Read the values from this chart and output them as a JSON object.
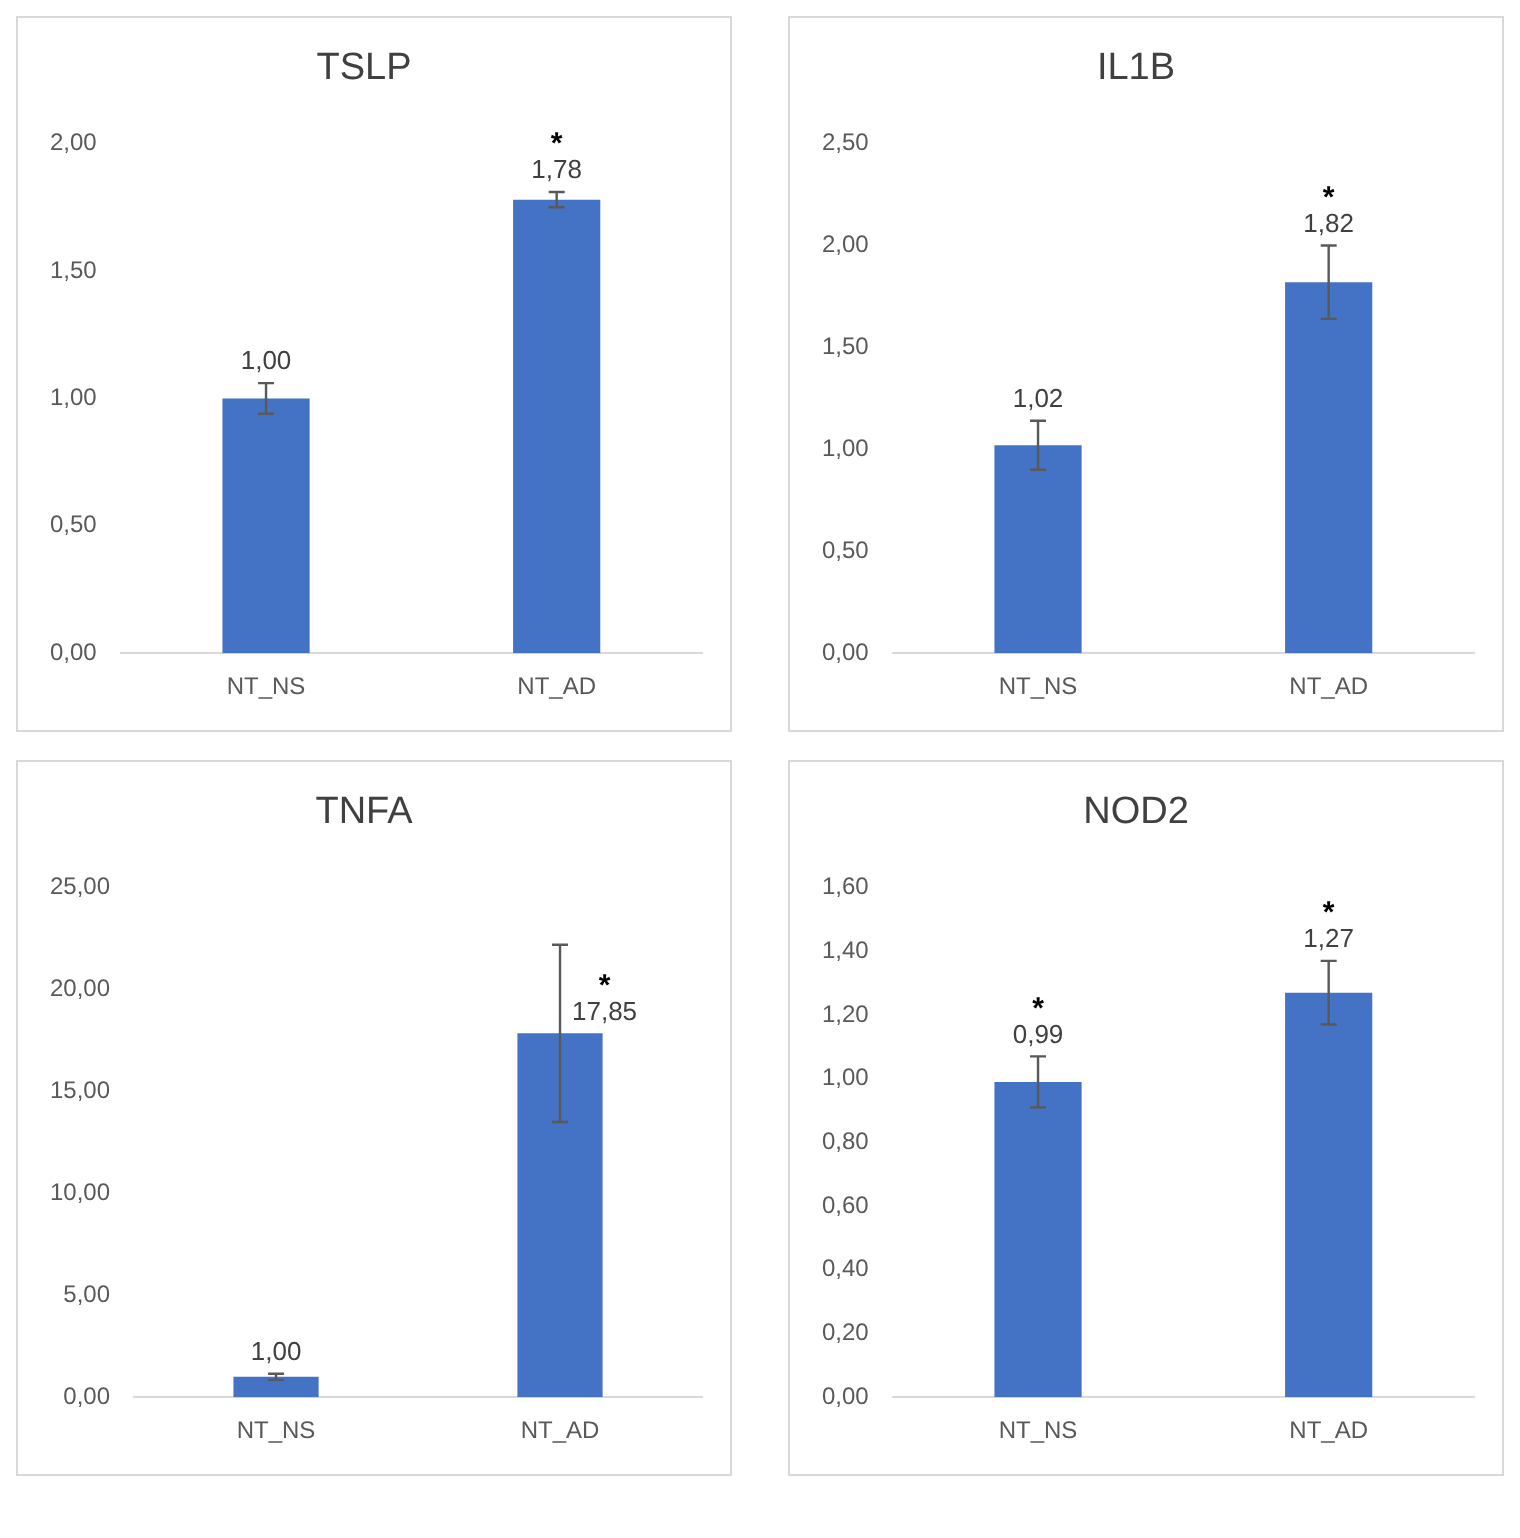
{
  "chart_data": [
    {
      "type": "bar",
      "title": "TSLP",
      "categories": [
        "NT_NS",
        "NT_AD"
      ],
      "values": [
        1.0,
        1.78
      ],
      "color": "#4472c4",
      "errors": [
        0.06,
        0.03
      ],
      "value_labels": [
        "1,00",
        "1,78"
      ],
      "ylim": [
        0,
        2
      ],
      "yticks": [
        {
          "value": 0,
          "label": "0,00"
        },
        {
          "value": 0.5,
          "label": "0,50"
        },
        {
          "value": 1,
          "label": "1,00"
        },
        {
          "value": 1.5,
          "label": "1,50"
        },
        {
          "value": 2,
          "label": "2,00"
        }
      ],
      "grid": false,
      "legend": false,
      "annotations": [
        "*"
      ]
    },
    {
      "type": "bar",
      "title": "IL1B",
      "categories": [
        "NT_NS",
        "NT_AD"
      ],
      "values": [
        1.02,
        1.82
      ],
      "color": "#4472c4",
      "errors": [
        0.12,
        0.18
      ],
      "value_labels": [
        "1,02",
        "1,82"
      ],
      "ylim": [
        0,
        2.5
      ],
      "yticks": [
        {
          "value": 0,
          "label": "0,00"
        },
        {
          "value": 0.5,
          "label": "0,50"
        },
        {
          "value": 1,
          "label": "1,00"
        },
        {
          "value": 1.5,
          "label": "1,50"
        },
        {
          "value": 2,
          "label": "2,00"
        },
        {
          "value": 2.5,
          "label": "2,50"
        }
      ],
      "grid": false,
      "legend": false,
      "annotations": [
        "*"
      ]
    },
    {
      "type": "bar",
      "title": "TNFA",
      "categories": [
        "NT_NS",
        "NT_AD"
      ],
      "values": [
        1.0,
        17.85
      ],
      "color": "#4472c4",
      "errors": [
        0.15,
        4.35
      ],
      "value_labels": [
        "1,00",
        "17,85"
      ],
      "ylim": [
        0,
        25
      ],
      "yticks": [
        {
          "value": 0,
          "label": "0,00"
        },
        {
          "value": 5,
          "label": "5,00"
        },
        {
          "value": 10,
          "label": "10,00"
        },
        {
          "value": 15,
          "label": "15,00"
        },
        {
          "value": 20,
          "label": "20,00"
        },
        {
          "value": 25,
          "label": "25,00"
        }
      ],
      "grid": false,
      "legend": false,
      "annotations": [
        "*"
      ]
    },
    {
      "type": "bar",
      "title": "NOD2",
      "categories": [
        "NT_NS",
        "NT_AD"
      ],
      "values": [
        0.99,
        1.27
      ],
      "color": "#4472c4",
      "errors": [
        0.08,
        0.1
      ],
      "value_labels": [
        "0,99",
        "1,27"
      ],
      "ylim": [
        0,
        1.6
      ],
      "yticks": [
        {
          "value": 0,
          "label": "0,00"
        },
        {
          "value": 0.2,
          "label": "0,20"
        },
        {
          "value": 0.4,
          "label": "0,40"
        },
        {
          "value": 0.6,
          "label": "0,60"
        },
        {
          "value": 0.8,
          "label": "0,80"
        },
        {
          "value": 1,
          "label": "1,00"
        },
        {
          "value": 1.2,
          "label": "1,20"
        },
        {
          "value": 1.4,
          "label": "1,40"
        },
        {
          "value": 1.6,
          "label": "1,60"
        }
      ],
      "grid": false,
      "legend": false,
      "annotations": [
        "*",
        "*"
      ]
    }
  ]
}
